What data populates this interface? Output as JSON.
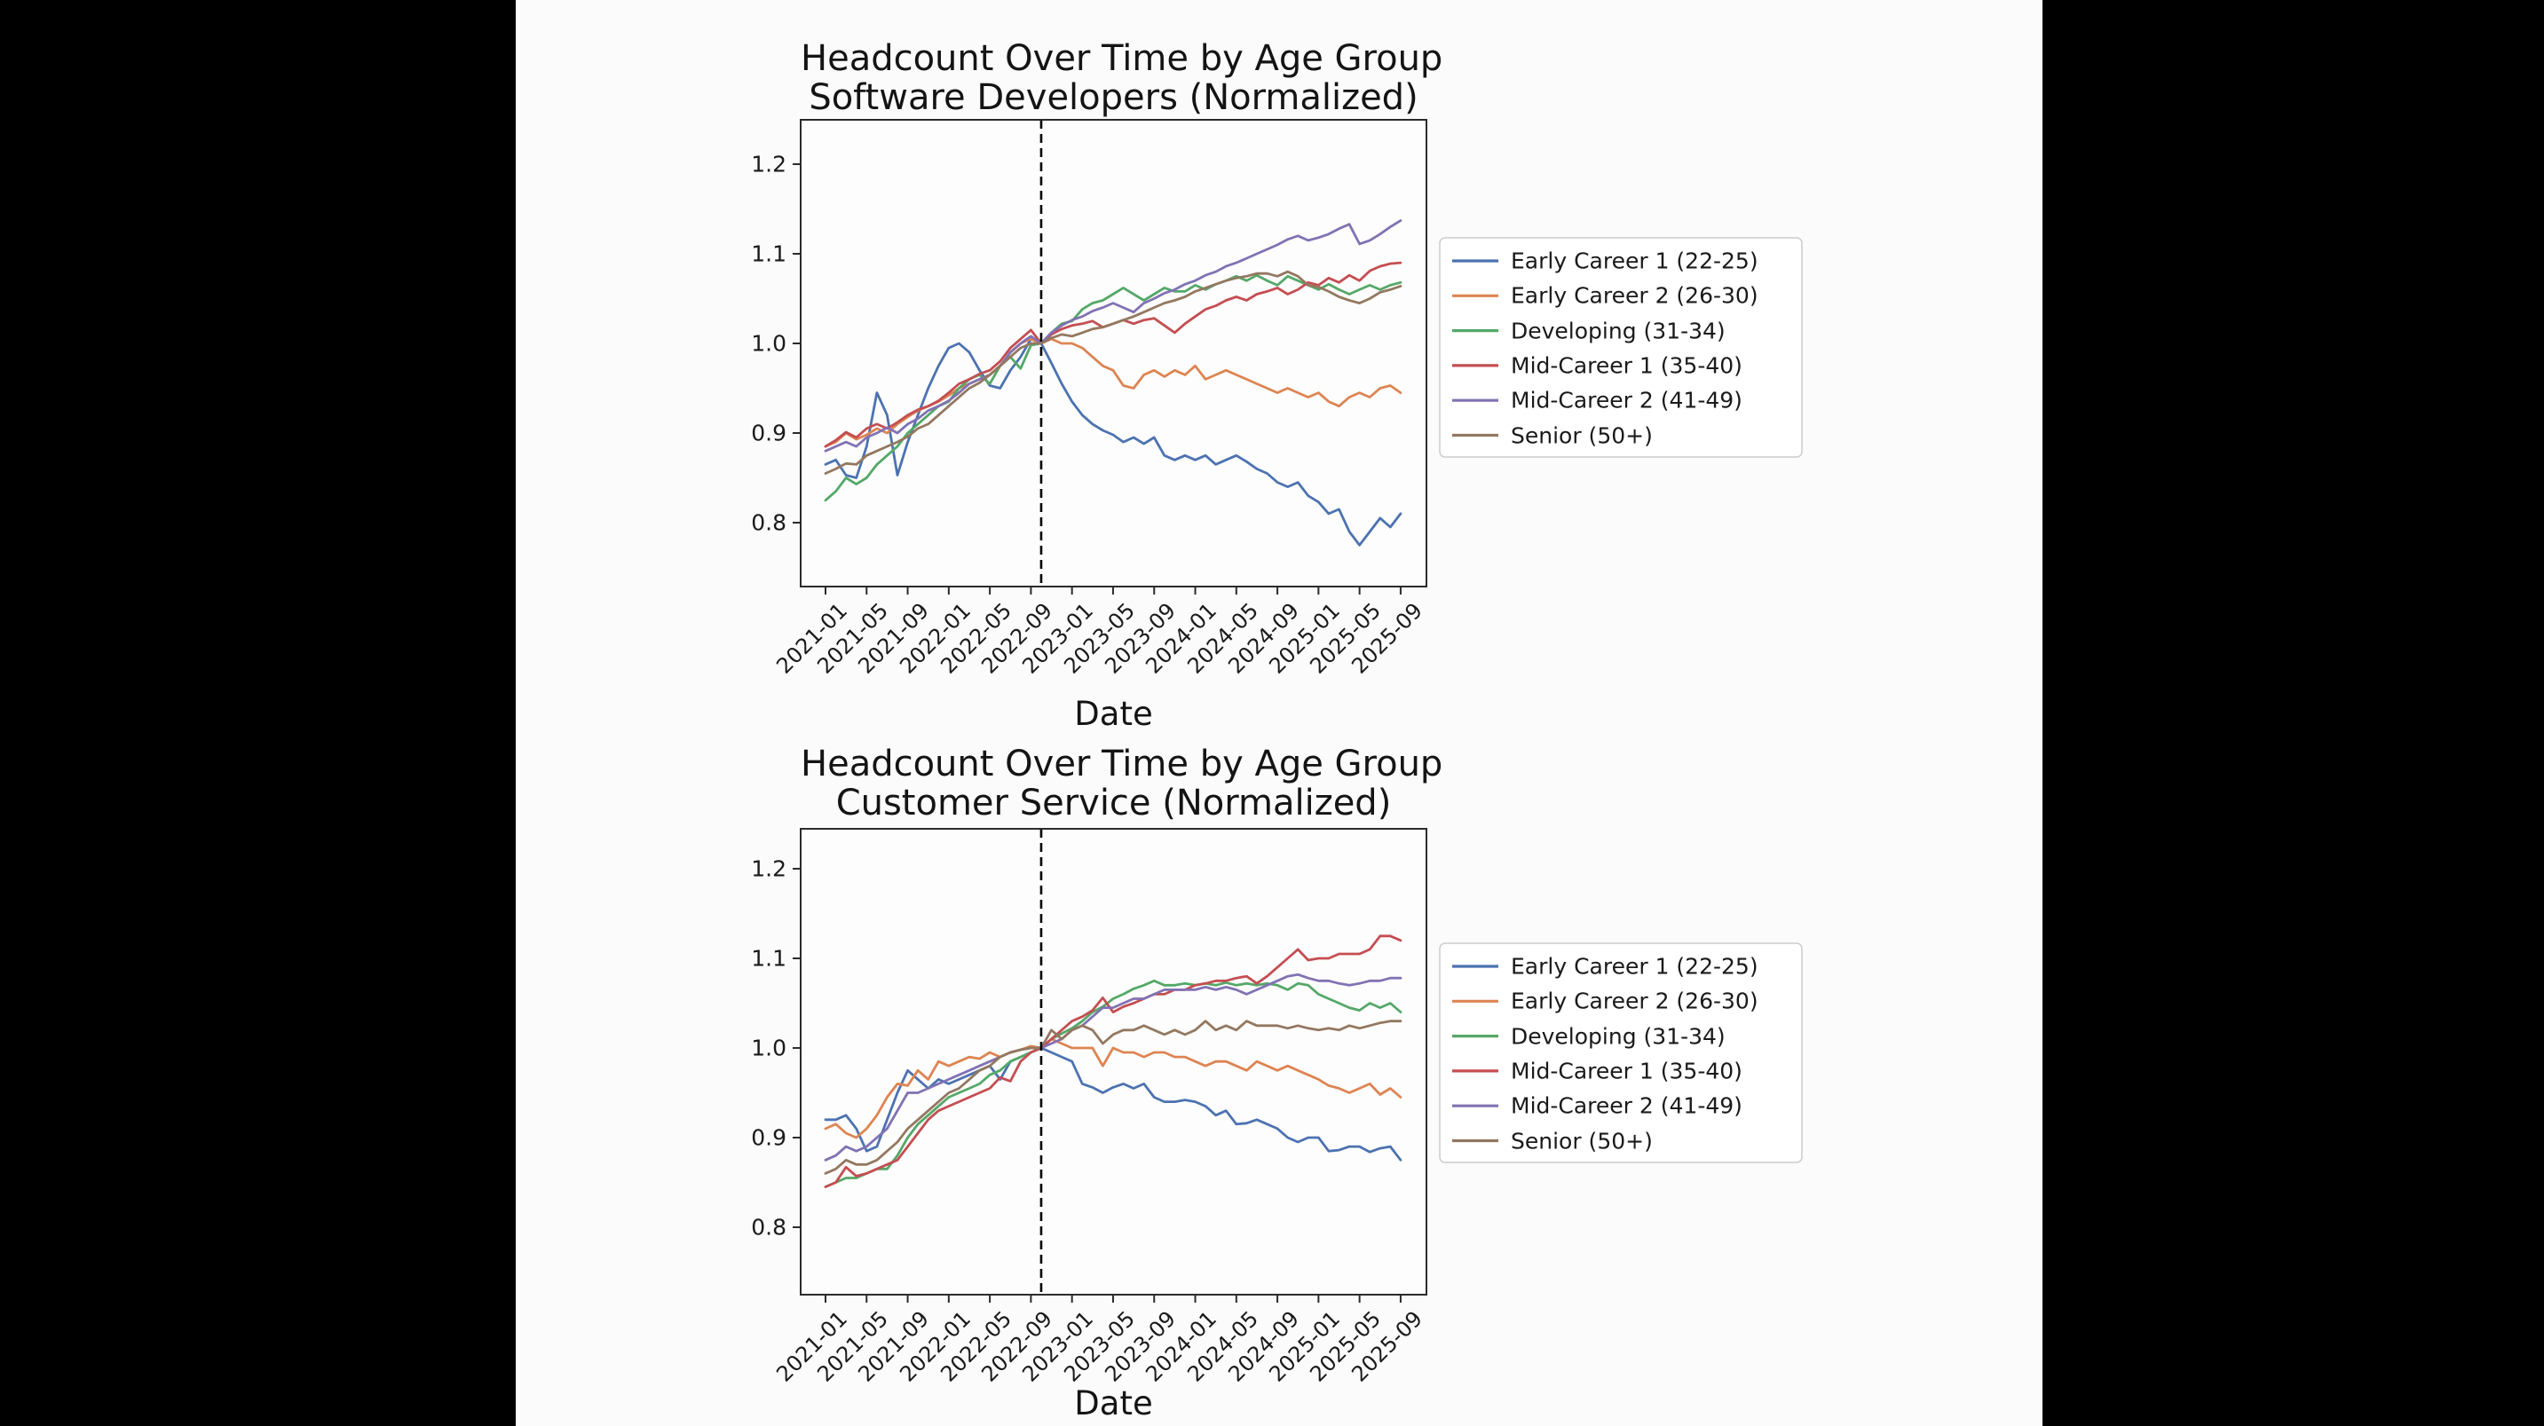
{
  "canvas": {
    "background": "#000000",
    "panel_background": "#fbfbfb",
    "text_color": "#141414",
    "axis_color": "#2b2b2b"
  },
  "chart_data": [
    {
      "type": "line",
      "title": "Headcount Over Time by Age Group",
      "subtitle": "Software Developers (Normalized)",
      "xlabel": "Date",
      "ylabel": "",
      "ylim": [
        0.73,
        1.25
      ],
      "yticks": [
        0.8,
        0.9,
        1.0,
        1.1,
        1.2
      ],
      "grid": false,
      "legend_position": "right",
      "vline": {
        "x": "2022-10",
        "style": "dashed",
        "color": "#000000"
      },
      "x": [
        "2021-01",
        "2021-02",
        "2021-03",
        "2021-04",
        "2021-05",
        "2021-06",
        "2021-07",
        "2021-08",
        "2021-09",
        "2021-10",
        "2021-11",
        "2021-12",
        "2022-01",
        "2022-02",
        "2022-03",
        "2022-04",
        "2022-05",
        "2022-06",
        "2022-07",
        "2022-08",
        "2022-09",
        "2022-10",
        "2022-11",
        "2022-12",
        "2023-01",
        "2023-02",
        "2023-03",
        "2023-04",
        "2023-05",
        "2023-06",
        "2023-07",
        "2023-08",
        "2023-09",
        "2023-10",
        "2023-11",
        "2023-12",
        "2024-01",
        "2024-02",
        "2024-03",
        "2024-04",
        "2024-05",
        "2024-06",
        "2024-07",
        "2024-08",
        "2024-09",
        "2024-10",
        "2024-11",
        "2024-12",
        "2025-01",
        "2025-02",
        "2025-03",
        "2025-04",
        "2025-05",
        "2025-06",
        "2025-07",
        "2025-08",
        "2025-09"
      ],
      "x_tick_labels": [
        "2021-01",
        "2021-05",
        "2021-09",
        "2022-01",
        "2022-05",
        "2022-09",
        "2023-01",
        "2023-05",
        "2023-09",
        "2024-01",
        "2024-05",
        "2024-09",
        "2025-01",
        "2025-05",
        "2025-09"
      ],
      "series": [
        {
          "name": "Early Career 1 (22-25)",
          "color": "#4C72B0",
          "values": [
            0.865,
            0.87,
            0.853,
            0.85,
            0.885,
            0.945,
            0.92,
            0.853,
            0.89,
            0.92,
            0.95,
            0.975,
            0.995,
            1.0,
            0.99,
            0.97,
            0.953,
            0.95,
            0.97,
            0.985,
            1.005,
            1.0,
            0.978,
            0.955,
            0.935,
            0.92,
            0.91,
            0.903,
            0.898,
            0.89,
            0.895,
            0.888,
            0.895,
            0.875,
            0.87,
            0.875,
            0.87,
            0.875,
            0.865,
            0.87,
            0.875,
            0.868,
            0.86,
            0.855,
            0.845,
            0.84,
            0.845,
            0.83,
            0.823,
            0.81,
            0.815,
            0.79,
            0.775,
            0.79,
            0.805,
            0.795,
            0.81
          ]
        },
        {
          "name": "Early Career 2 (26-30)",
          "color": "#DD8452",
          "values": [
            0.885,
            0.89,
            0.9,
            0.893,
            0.898,
            0.905,
            0.9,
            0.91,
            0.918,
            0.925,
            0.93,
            0.935,
            0.942,
            0.95,
            0.955,
            0.96,
            0.965,
            0.975,
            0.99,
            1.0,
            1.005,
            1.0,
            1.005,
            1.0,
            1.0,
            0.995,
            0.985,
            0.975,
            0.97,
            0.953,
            0.95,
            0.965,
            0.97,
            0.963,
            0.97,
            0.965,
            0.975,
            0.96,
            0.965,
            0.97,
            0.965,
            0.96,
            0.955,
            0.95,
            0.945,
            0.95,
            0.945,
            0.94,
            0.945,
            0.935,
            0.93,
            0.94,
            0.945,
            0.94,
            0.95,
            0.953,
            0.945
          ]
        },
        {
          "name": "Developing (31-34)",
          "color": "#55A868",
          "values": [
            0.825,
            0.835,
            0.85,
            0.843,
            0.85,
            0.865,
            0.875,
            0.885,
            0.9,
            0.91,
            0.92,
            0.93,
            0.935,
            0.95,
            0.96,
            0.965,
            0.955,
            0.975,
            0.985,
            0.972,
            0.998,
            1.0,
            1.012,
            1.022,
            1.025,
            1.038,
            1.045,
            1.048,
            1.055,
            1.062,
            1.055,
            1.048,
            1.055,
            1.062,
            1.058,
            1.058,
            1.065,
            1.06,
            1.066,
            1.07,
            1.075,
            1.07,
            1.076,
            1.07,
            1.065,
            1.075,
            1.07,
            1.065,
            1.06,
            1.066,
            1.06,
            1.055,
            1.06,
            1.065,
            1.06,
            1.065,
            1.068
          ]
        },
        {
          "name": "Mid-Career 1 (35-40)",
          "color": "#C44E52",
          "values": [
            0.885,
            0.892,
            0.901,
            0.895,
            0.905,
            0.91,
            0.905,
            0.912,
            0.92,
            0.926,
            0.93,
            0.936,
            0.945,
            0.955,
            0.96,
            0.966,
            0.97,
            0.98,
            0.995,
            1.005,
            1.015,
            1.0,
            1.01,
            1.016,
            1.02,
            1.022,
            1.025,
            1.018,
            1.022,
            1.026,
            1.022,
            1.026,
            1.028,
            1.02,
            1.012,
            1.022,
            1.03,
            1.038,
            1.042,
            1.048,
            1.052,
            1.048,
            1.055,
            1.058,
            1.062,
            1.055,
            1.06,
            1.068,
            1.065,
            1.073,
            1.068,
            1.076,
            1.07,
            1.081,
            1.086,
            1.089,
            1.09
          ]
        },
        {
          "name": "Mid-Career 2 (41-49)",
          "color": "#8172B3",
          "values": [
            0.88,
            0.885,
            0.89,
            0.885,
            0.895,
            0.9,
            0.906,
            0.9,
            0.91,
            0.916,
            0.925,
            0.93,
            0.936,
            0.945,
            0.955,
            0.96,
            0.965,
            0.975,
            0.99,
            1.0,
            1.008,
            1.0,
            1.012,
            1.02,
            1.026,
            1.03,
            1.036,
            1.04,
            1.045,
            1.04,
            1.035,
            1.045,
            1.05,
            1.056,
            1.06,
            1.066,
            1.07,
            1.076,
            1.08,
            1.086,
            1.09,
            1.095,
            1.1,
            1.105,
            1.11,
            1.116,
            1.12,
            1.115,
            1.118,
            1.122,
            1.128,
            1.133,
            1.111,
            1.115,
            1.122,
            1.13,
            1.137
          ]
        },
        {
          "name": "Senior (50+)",
          "color": "#937860",
          "values": [
            0.855,
            0.86,
            0.866,
            0.865,
            0.875,
            0.88,
            0.885,
            0.89,
            0.896,
            0.905,
            0.91,
            0.92,
            0.93,
            0.94,
            0.95,
            0.956,
            0.965,
            0.975,
            0.985,
            0.995,
            1.0,
            1.0,
            1.006,
            1.01,
            1.008,
            1.012,
            1.016,
            1.018,
            1.022,
            1.026,
            1.03,
            1.035,
            1.04,
            1.045,
            1.048,
            1.052,
            1.058,
            1.062,
            1.066,
            1.07,
            1.073,
            1.075,
            1.078,
            1.078,
            1.075,
            1.08,
            1.075,
            1.065,
            1.063,
            1.058,
            1.052,
            1.048,
            1.045,
            1.05,
            1.057,
            1.06,
            1.064
          ]
        }
      ]
    },
    {
      "type": "line",
      "title": "Headcount Over Time by Age Group",
      "subtitle": "Customer Service (Normalized)",
      "xlabel": "Date",
      "ylabel": "",
      "ylim": [
        0.73,
        1.25
      ],
      "yticks": [
        0.8,
        0.9,
        1.0,
        1.1,
        1.2
      ],
      "grid": false,
      "legend_position": "right",
      "vline": {
        "x": "2022-10",
        "style": "dashed",
        "color": "#000000"
      },
      "x": [
        "2021-01",
        "2021-02",
        "2021-03",
        "2021-04",
        "2021-05",
        "2021-06",
        "2021-07",
        "2021-08",
        "2021-09",
        "2021-10",
        "2021-11",
        "2021-12",
        "2022-01",
        "2022-02",
        "2022-03",
        "2022-04",
        "2022-05",
        "2022-06",
        "2022-07",
        "2022-08",
        "2022-09",
        "2022-10",
        "2022-11",
        "2022-12",
        "2023-01",
        "2023-02",
        "2023-03",
        "2023-04",
        "2023-05",
        "2023-06",
        "2023-07",
        "2023-08",
        "2023-09",
        "2023-10",
        "2023-11",
        "2023-12",
        "2024-01",
        "2024-02",
        "2024-03",
        "2024-04",
        "2024-05",
        "2024-06",
        "2024-07",
        "2024-08",
        "2024-09",
        "2024-10",
        "2024-11",
        "2024-12",
        "2025-01",
        "2025-02",
        "2025-03",
        "2025-04",
        "2025-05",
        "2025-06",
        "2025-07",
        "2025-08",
        "2025-09"
      ],
      "x_tick_labels": [
        "2021-01",
        "2021-05",
        "2021-09",
        "2022-01",
        "2022-05",
        "2022-09",
        "2023-01",
        "2023-05",
        "2023-09",
        "2024-01",
        "2024-05",
        "2024-09",
        "2025-01",
        "2025-05",
        "2025-09"
      ],
      "series": [
        {
          "name": "Early Career 1 (22-25)",
          "color": "#4C72B0",
          "values": [
            0.92,
            0.92,
            0.925,
            0.91,
            0.885,
            0.89,
            0.92,
            0.95,
            0.975,
            0.965,
            0.955,
            0.965,
            0.96,
            0.965,
            0.97,
            0.975,
            0.98,
            0.965,
            0.985,
            0.99,
            0.995,
            1.0,
            0.995,
            0.99,
            0.985,
            0.96,
            0.956,
            0.95,
            0.956,
            0.96,
            0.955,
            0.96,
            0.945,
            0.94,
            0.94,
            0.942,
            0.94,
            0.935,
            0.925,
            0.93,
            0.915,
            0.916,
            0.92,
            0.915,
            0.91,
            0.9,
            0.895,
            0.9,
            0.9,
            0.885,
            0.886,
            0.89,
            0.89,
            0.884,
            0.888,
            0.89,
            0.875
          ]
        },
        {
          "name": "Early Career 2 (26-30)",
          "color": "#DD8452",
          "values": [
            0.91,
            0.915,
            0.905,
            0.9,
            0.91,
            0.925,
            0.945,
            0.96,
            0.958,
            0.975,
            0.965,
            0.985,
            0.98,
            0.985,
            0.99,
            0.988,
            0.995,
            0.99,
            0.995,
            0.998,
            1.002,
            1.0,
            1.01,
            1.005,
            1.0,
            1.0,
            1.0,
            0.98,
            1.0,
            0.995,
            0.995,
            0.99,
            0.995,
            0.995,
            0.99,
            0.99,
            0.985,
            0.98,
            0.985,
            0.985,
            0.98,
            0.975,
            0.985,
            0.98,
            0.975,
            0.98,
            0.975,
            0.97,
            0.965,
            0.958,
            0.955,
            0.95,
            0.955,
            0.96,
            0.948,
            0.955,
            0.945
          ]
        },
        {
          "name": "Developing (31-34)",
          "color": "#55A868",
          "values": [
            0.845,
            0.85,
            0.855,
            0.855,
            0.86,
            0.865,
            0.865,
            0.88,
            0.9,
            0.915,
            0.925,
            0.935,
            0.945,
            0.95,
            0.955,
            0.96,
            0.97,
            0.975,
            0.985,
            0.99,
            0.995,
            1.0,
            1.01,
            1.016,
            1.022,
            1.03,
            1.04,
            1.046,
            1.055,
            1.06,
            1.066,
            1.07,
            1.075,
            1.07,
            1.07,
            1.072,
            1.07,
            1.072,
            1.07,
            1.073,
            1.07,
            1.072,
            1.07,
            1.072,
            1.07,
            1.065,
            1.072,
            1.07,
            1.06,
            1.055,
            1.05,
            1.045,
            1.042,
            1.05,
            1.045,
            1.05,
            1.04
          ]
        },
        {
          "name": "Mid-Career 1 (35-40)",
          "color": "#C44E52",
          "values": [
            0.845,
            0.85,
            0.867,
            0.857,
            0.86,
            0.865,
            0.87,
            0.875,
            0.89,
            0.905,
            0.92,
            0.93,
            0.935,
            0.94,
            0.945,
            0.95,
            0.955,
            0.967,
            0.963,
            0.985,
            0.995,
            1.0,
            1.01,
            1.02,
            1.03,
            1.035,
            1.042,
            1.056,
            1.04,
            1.046,
            1.05,
            1.055,
            1.06,
            1.06,
            1.065,
            1.065,
            1.07,
            1.072,
            1.075,
            1.075,
            1.078,
            1.08,
            1.072,
            1.08,
            1.09,
            1.1,
            1.11,
            1.098,
            1.1,
            1.1,
            1.105,
            1.105,
            1.105,
            1.11,
            1.125,
            1.125,
            1.12
          ]
        },
        {
          "name": "Mid-Career 2 (41-49)",
          "color": "#8172B3",
          "values": [
            0.875,
            0.88,
            0.89,
            0.885,
            0.89,
            0.9,
            0.91,
            0.93,
            0.95,
            0.95,
            0.955,
            0.96,
            0.965,
            0.97,
            0.975,
            0.98,
            0.985,
            0.99,
            0.995,
            0.998,
            1.0,
            1.0,
            1.005,
            1.01,
            1.02,
            1.025,
            1.035,
            1.045,
            1.045,
            1.05,
            1.055,
            1.055,
            1.06,
            1.065,
            1.065,
            1.065,
            1.065,
            1.068,
            1.065,
            1.068,
            1.065,
            1.06,
            1.065,
            1.07,
            1.075,
            1.08,
            1.082,
            1.078,
            1.075,
            1.075,
            1.072,
            1.07,
            1.072,
            1.075,
            1.075,
            1.078,
            1.078
          ]
        },
        {
          "name": "Senior (50+)",
          "color": "#937860",
          "values": [
            0.86,
            0.865,
            0.875,
            0.87,
            0.87,
            0.875,
            0.885,
            0.895,
            0.91,
            0.92,
            0.93,
            0.94,
            0.95,
            0.955,
            0.965,
            0.975,
            0.98,
            0.99,
            0.995,
            0.998,
            1.0,
            1.0,
            1.02,
            1.01,
            1.02,
            1.025,
            1.02,
            1.005,
            1.015,
            1.02,
            1.02,
            1.025,
            1.02,
            1.015,
            1.02,
            1.015,
            1.02,
            1.03,
            1.02,
            1.025,
            1.02,
            1.03,
            1.025,
            1.025,
            1.025,
            1.022,
            1.025,
            1.022,
            1.02,
            1.022,
            1.02,
            1.025,
            1.022,
            1.025,
            1.028,
            1.03,
            1.03
          ]
        }
      ]
    }
  ]
}
